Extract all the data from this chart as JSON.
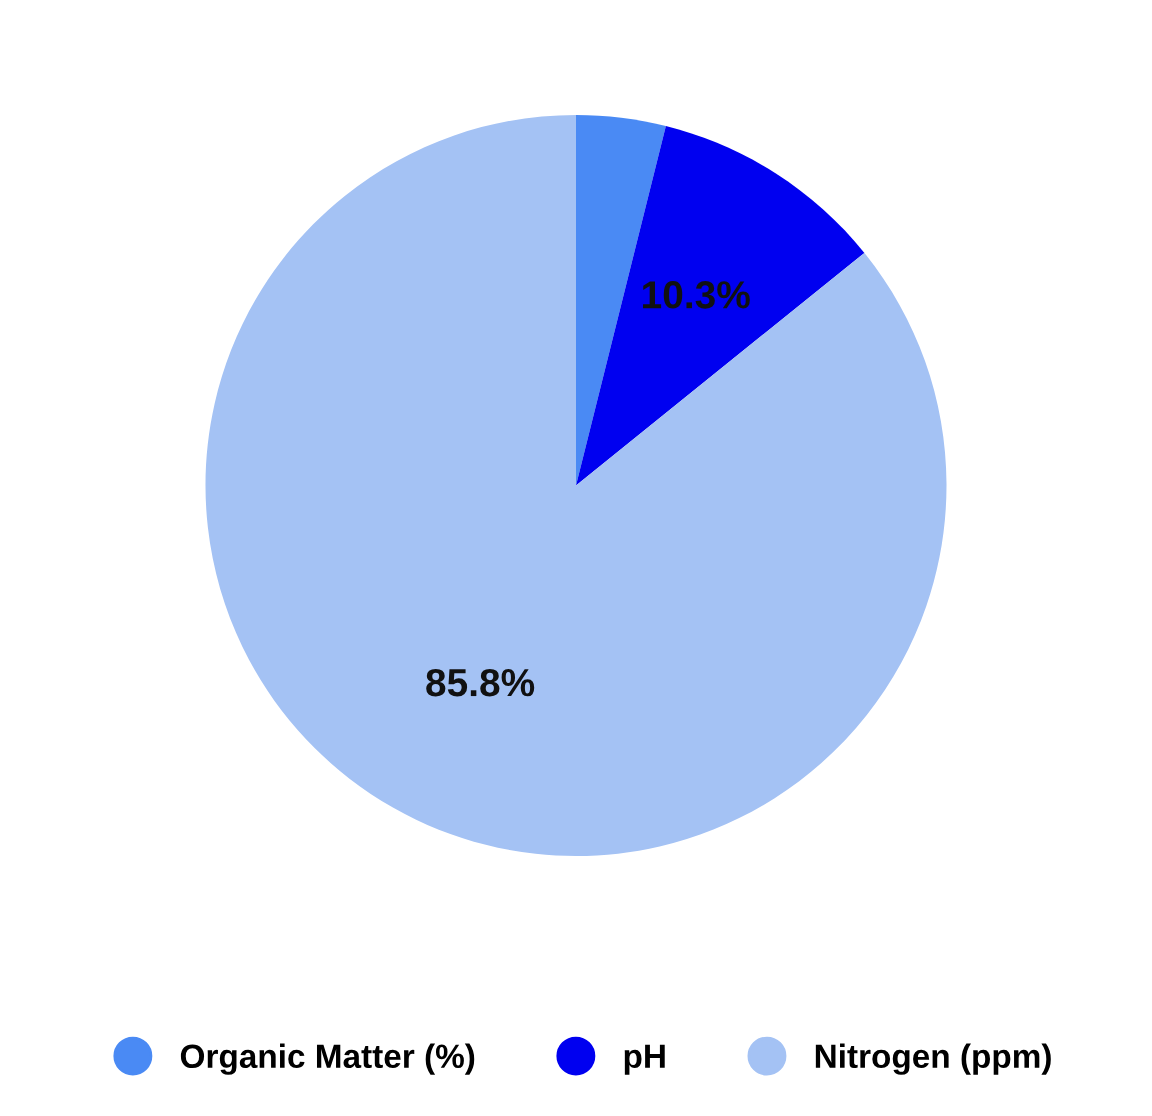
{
  "chart_data": {
    "type": "pie",
    "categories": [
      "Organic Matter (%)",
      "pH",
      "Nitrogen (ppm)"
    ],
    "values": [
      3.9,
      10.3,
      85.8
    ],
    "colors": [
      "#4a8af4",
      "#0000f0",
      "#a4c2f4"
    ],
    "value_labels": [
      null,
      "10.3%",
      "85.8%"
    ],
    "legend": "bottom"
  }
}
